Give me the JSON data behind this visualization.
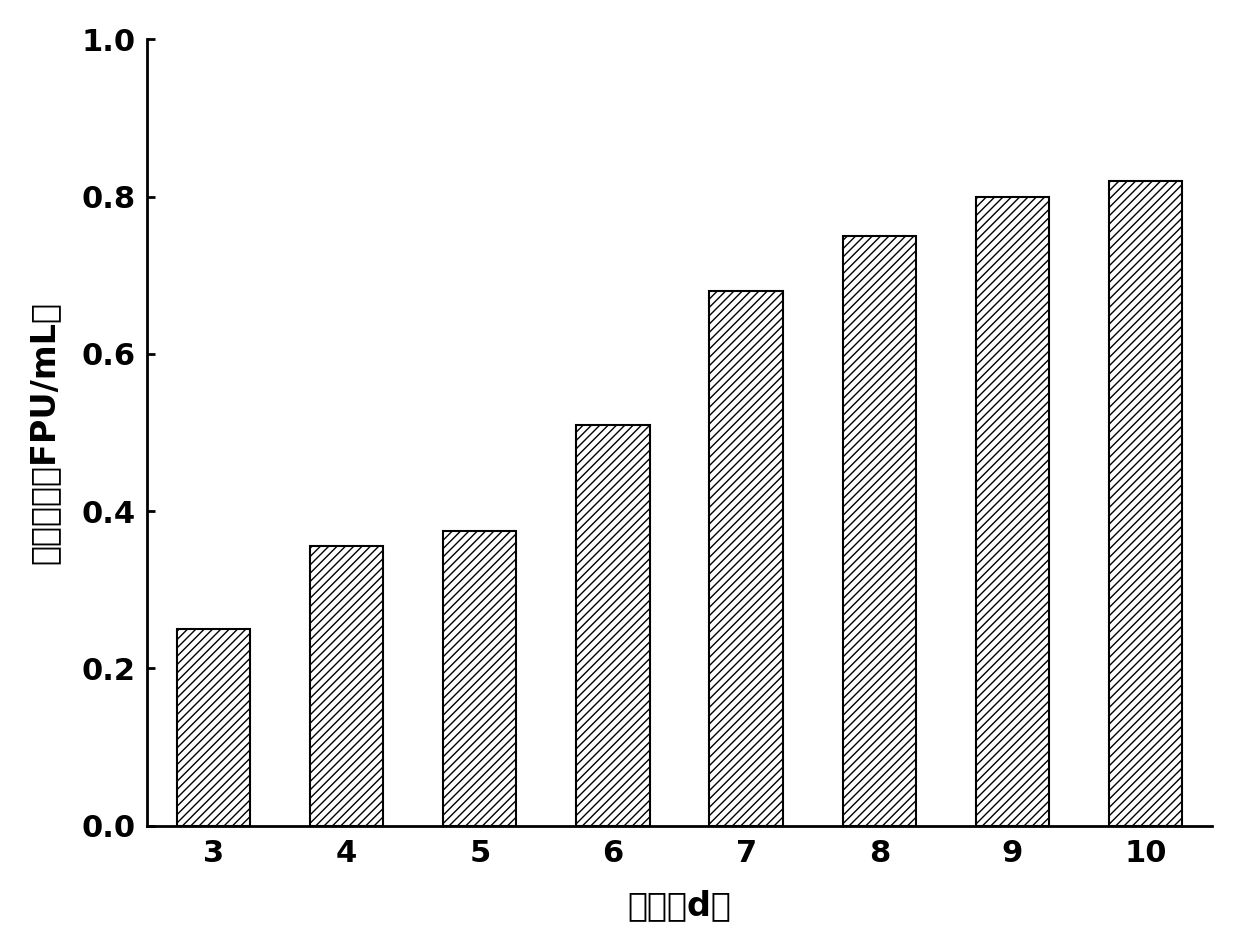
{
  "categories": [
    3,
    4,
    5,
    6,
    7,
    8,
    9,
    10
  ],
  "values": [
    0.25,
    0.355,
    0.375,
    0.51,
    0.68,
    0.75,
    0.8,
    0.82
  ],
  "xlabel": "时间（d）",
  "ylabel": "滤纸酶活（FPU/mL）",
  "ylim": [
    0.0,
    1.0
  ],
  "yticks": [
    0.0,
    0.2,
    0.4,
    0.6,
    0.8,
    1.0
  ],
  "bar_color": "#ffffff",
  "bar_edgecolor": "#000000",
  "hatch": "////",
  "bar_width": 0.55,
  "label_fontsize": 24,
  "tick_fontsize": 22,
  "background_color": "#ffffff"
}
